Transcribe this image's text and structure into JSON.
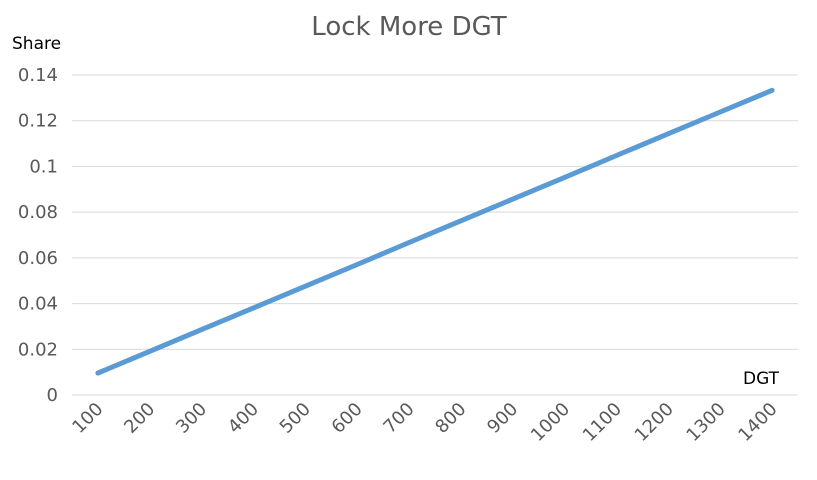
{
  "chart_data": {
    "type": "line",
    "title": "Lock More DGT",
    "xlabel": "DGT",
    "ylabel": "Share",
    "x": [
      100,
      200,
      300,
      400,
      500,
      600,
      700,
      800,
      900,
      1000,
      1100,
      1200,
      1300,
      1400
    ],
    "x_tick_labels": [
      "100",
      "200",
      "300",
      "400",
      "500",
      "600",
      "700",
      "800",
      "900",
      "1000",
      "1100",
      "1200",
      "1300",
      "1400"
    ],
    "y_tick_labels": [
      "0",
      "0.02",
      "0.04",
      "0.06",
      "0.08",
      "0.1",
      "0.12",
      "0.14"
    ],
    "y_ticks": [
      0,
      0.02,
      0.04,
      0.06,
      0.08,
      0.1,
      0.12,
      0.14
    ],
    "ylim": [
      0,
      0.14
    ],
    "grid": true,
    "legend": "none",
    "series": [
      {
        "color": "#5b9bd5",
        "values": [
          0.0096,
          0.0191,
          0.0286,
          0.0381,
          0.0476,
          0.0571,
          0.0667,
          0.0762,
          0.0857,
          0.0952,
          0.1048,
          0.1143,
          0.1238,
          0.1333
        ]
      }
    ]
  }
}
